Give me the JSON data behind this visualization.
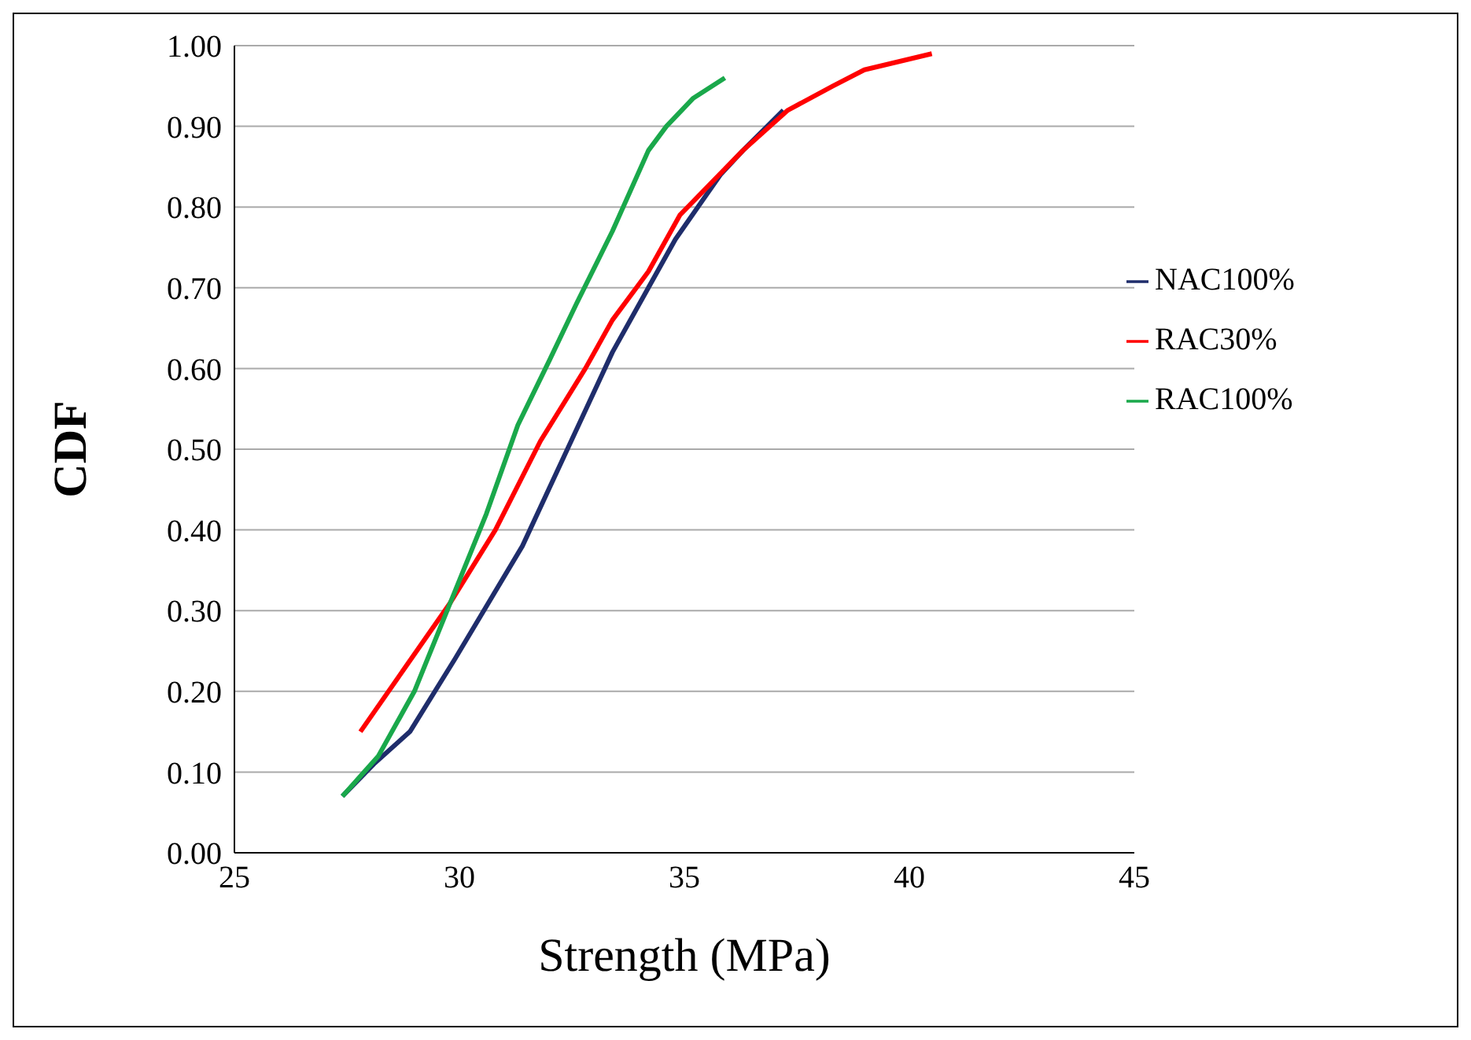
{
  "chart_data": {
    "type": "line",
    "xlabel": "Strength (MPa)",
    "ylabel": "CDF",
    "xlim": [
      25,
      45
    ],
    "xticks": [
      25,
      30,
      35,
      40,
      45
    ],
    "ylim": [
      0,
      1
    ],
    "yticks": [
      {
        "value": 0,
        "label": "0.00"
      },
      {
        "value": 0.1,
        "label": "0.10"
      },
      {
        "value": 0.2,
        "label": "0.20"
      },
      {
        "value": 0.3,
        "label": "0.30"
      },
      {
        "value": 0.4,
        "label": "0.40"
      },
      {
        "value": 0.5,
        "label": "0.50"
      },
      {
        "value": 0.6,
        "label": "0.60"
      },
      {
        "value": 0.7,
        "label": "0.70"
      },
      {
        "value": 0.8,
        "label": "0.80"
      },
      {
        "value": 0.9,
        "label": "0.90"
      },
      {
        "value": 1,
        "label": "1.00"
      }
    ],
    "grid": "y",
    "legend": "top right",
    "marker": "none",
    "line_style": "solid",
    "series": [
      {
        "name": "NAC100%",
        "color": "#1f2d6b",
        "x": [
          27.4,
          28.1,
          28.9,
          29.9,
          31.4,
          32.4,
          33.4,
          34.2,
          34.8,
          35.8,
          36.3,
          37.2
        ],
        "values": [
          0.07,
          0.11,
          0.15,
          0.24,
          0.38,
          0.5,
          0.62,
          0.7,
          0.76,
          0.84,
          0.87,
          0.92
        ]
      },
      {
        "name": "RAC30%",
        "color": "#ff0000",
        "x": [
          27.8,
          28.8,
          29.8,
          30.8,
          31.8,
          32.8,
          33.4,
          34.2,
          34.9,
          35.6,
          36.3,
          37.3,
          38.3,
          39.0,
          40.5
        ],
        "values": [
          0.15,
          0.23,
          0.31,
          0.4,
          0.51,
          0.6,
          0.66,
          0.72,
          0.79,
          0.83,
          0.87,
          0.92,
          0.95,
          0.97,
          0.99
        ]
      },
      {
        "name": "RAC100%",
        "color": "#1aa84b",
        "x": [
          27.4,
          28.2,
          29.0,
          29.8,
          30.6,
          31.3,
          32.0,
          32.6,
          33.4,
          34.2,
          34.6,
          35.2,
          35.9
        ],
        "values": [
          0.07,
          0.12,
          0.2,
          0.31,
          0.42,
          0.53,
          0.61,
          0.68,
          0.77,
          0.87,
          0.9,
          0.935,
          0.96
        ]
      }
    ]
  }
}
